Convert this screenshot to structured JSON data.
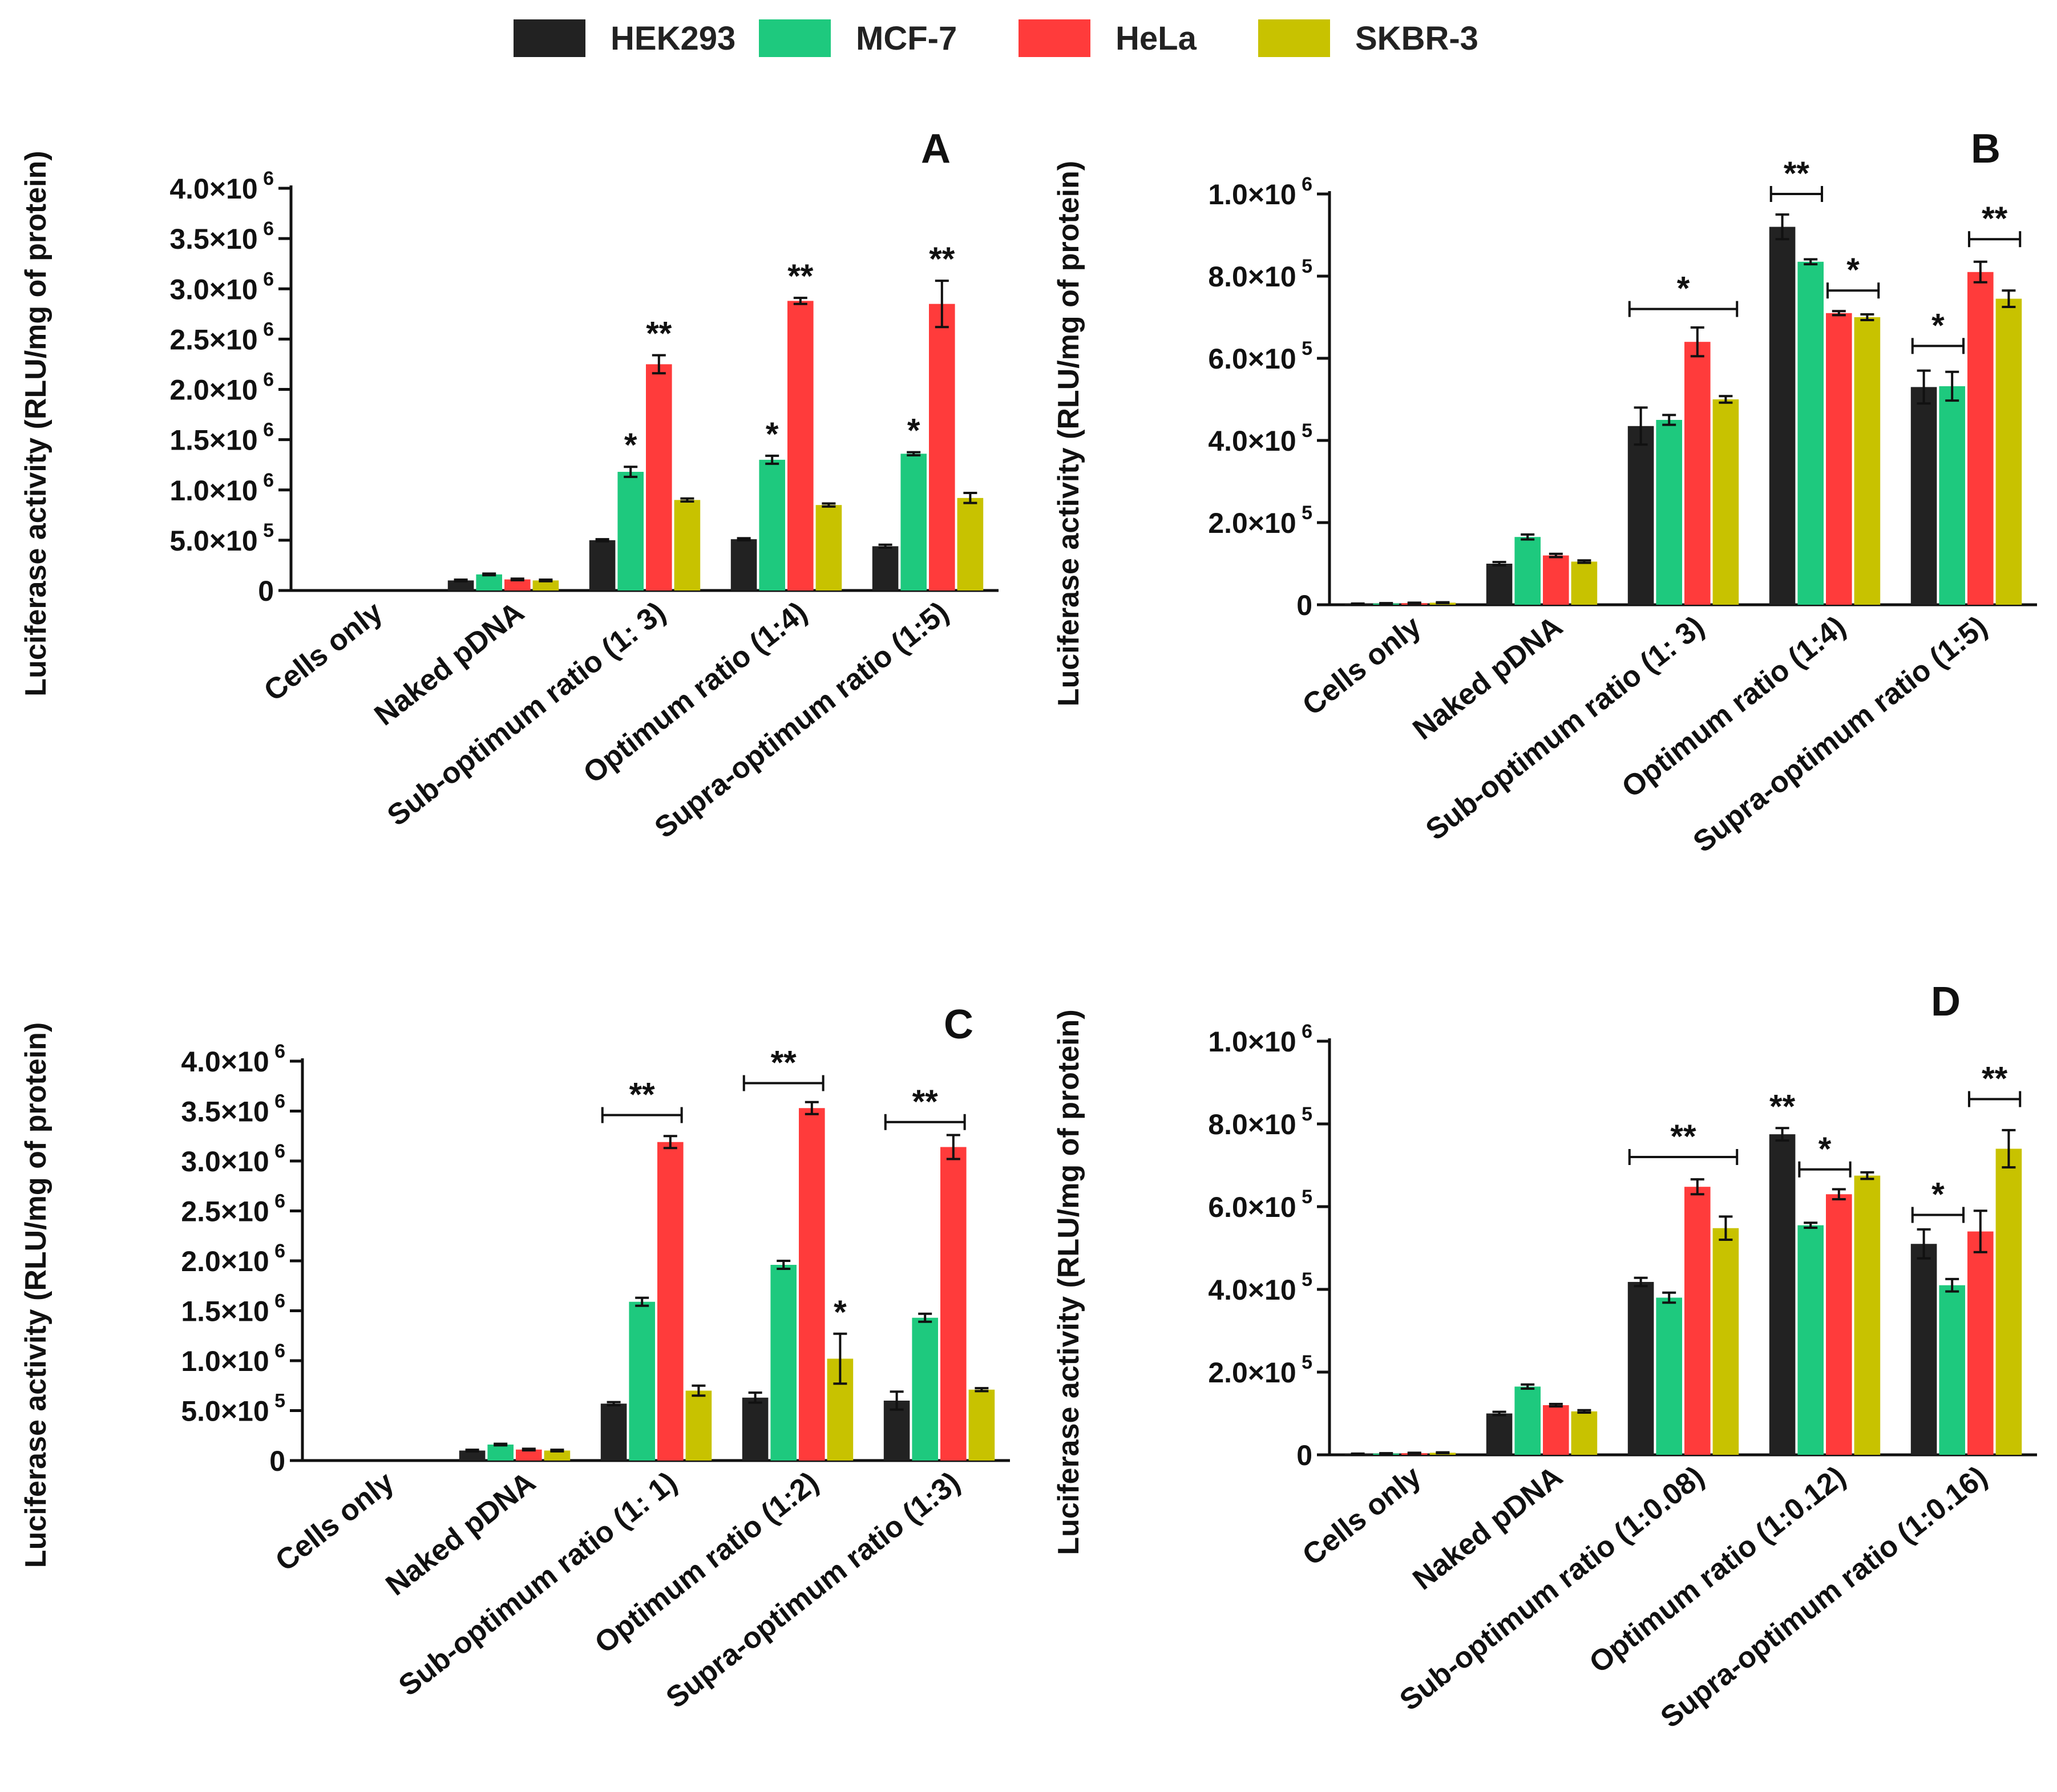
{
  "legend": [
    {
      "name": "HEK293",
      "color": "#222222"
    },
    {
      "name": "MCF-7",
      "color": "#1ec97e"
    },
    {
      "name": "HeLa",
      "color": "#ff3b3b"
    },
    {
      "name": "SKBR-3",
      "color": "#c8c200"
    }
  ],
  "chart_data": [
    {
      "type": "bar",
      "title": "A",
      "ylabel": "Luciferase activity (RLU/mg of protein)",
      "ylim": [
        0,
        4000000
      ],
      "yticks": [
        {
          "value": 0,
          "label": "0"
        },
        {
          "value": 500000,
          "label": "5.0×10^5"
        },
        {
          "value": 1000000,
          "label": "1.0×10^6"
        },
        {
          "value": 1500000,
          "label": "1.5×10^6"
        },
        {
          "value": 2000000,
          "label": "2.0×10^6"
        },
        {
          "value": 2500000,
          "label": "2.5×10^6"
        },
        {
          "value": 3000000,
          "label": "3.0×10^6"
        },
        {
          "value": 3500000,
          "label": "3.5×10^6"
        },
        {
          "value": 4000000,
          "label": "4.0×10^6"
        }
      ],
      "categories": [
        "Cells only",
        "Naked pDNA",
        "Sub-optimum ratio (1: 3)",
        "Optimum ratio (1:4)",
        "Supra-optimum ratio (1:5)"
      ],
      "series": [
        {
          "name": "HEK293",
          "values": [
            0,
            100000,
            500000,
            510000,
            440000
          ],
          "errors": [
            0,
            8000,
            10000,
            10000,
            15000
          ]
        },
        {
          "name": "MCF-7",
          "values": [
            0,
            160000,
            1180000,
            1300000,
            1360000
          ],
          "errors": [
            0,
            8000,
            50000,
            40000,
            15000
          ]
        },
        {
          "name": "HeLa",
          "values": [
            0,
            110000,
            2250000,
            2880000,
            2850000
          ],
          "errors": [
            0,
            8000,
            90000,
            30000,
            230000
          ]
        },
        {
          "name": "SKBR-3",
          "values": [
            0,
            100000,
            900000,
            850000,
            920000
          ],
          "errors": [
            0,
            8000,
            15000,
            15000,
            50000
          ]
        }
      ],
      "annotations": [
        {
          "text": "*",
          "category": 2,
          "series": 1
        },
        {
          "text": "**",
          "category": 2,
          "series": 2
        },
        {
          "text": "*",
          "category": 3,
          "series": 1
        },
        {
          "text": "**",
          "category": 3,
          "series": 2
        },
        {
          "text": "*",
          "category": 4,
          "series": 1
        },
        {
          "text": "**",
          "category": 4,
          "series": 2
        }
      ],
      "brackets": []
    },
    {
      "type": "bar",
      "title": "B",
      "ylabel": "Luciferase activity (RLU/mg of protein)",
      "ylim": [
        0,
        1000000
      ],
      "yticks": [
        {
          "value": 0,
          "label": "0"
        },
        {
          "value": 200000,
          "label": "2.0×10^5"
        },
        {
          "value": 400000,
          "label": "4.0×10^5"
        },
        {
          "value": 600000,
          "label": "6.0×10^5"
        },
        {
          "value": 800000,
          "label": "8.0×10^5"
        },
        {
          "value": 1000000,
          "label": "1.0×10^6"
        }
      ],
      "categories": [
        "Cells only",
        "Naked pDNA",
        "Sub-optimum ratio (1: 3)",
        "Optimum ratio (1:4)",
        "Supra-optimum ratio (1:5)"
      ],
      "series": [
        {
          "name": "HEK293",
          "values": [
            2000,
            100000,
            435000,
            920000,
            530000
          ],
          "errors": [
            1000,
            4000,
            45000,
            30000,
            40000
          ]
        },
        {
          "name": "MCF-7",
          "values": [
            3000,
            165000,
            450000,
            835000,
            532000
          ],
          "errors": [
            1000,
            6000,
            12000,
            6000,
            35000
          ]
        },
        {
          "name": "HeLa",
          "values": [
            4000,
            120000,
            640000,
            710000,
            810000
          ],
          "errors": [
            1000,
            4000,
            35000,
            5000,
            25000
          ]
        },
        {
          "name": "SKBR-3",
          "values": [
            5000,
            105000,
            500000,
            700000,
            745000
          ],
          "errors": [
            1000,
            3000,
            8000,
            7000,
            20000
          ]
        }
      ],
      "annotations": [],
      "brackets": [
        {
          "text": "*",
          "category": 2,
          "from": 0,
          "to": 3,
          "value": 720000
        },
        {
          "text": "**",
          "category": 3,
          "from": 0,
          "to": 1,
          "value": 1000000
        },
        {
          "text": "*",
          "category": 3,
          "from": 2,
          "to": 3,
          "value": 765000
        },
        {
          "text": "*",
          "category": 4,
          "from": 0,
          "to": 1,
          "value": 630000
        },
        {
          "text": "**",
          "category": 4,
          "from": 2,
          "to": 3,
          "value": 890000
        }
      ]
    },
    {
      "type": "bar",
      "title": "C",
      "ylabel": "Luciferase activity (RLU/mg of protein)",
      "ylim": [
        0,
        4000000
      ],
      "yticks": [
        {
          "value": 0,
          "label": "0"
        },
        {
          "value": 500000,
          "label": "5.0×10^5"
        },
        {
          "value": 1000000,
          "label": "1.0×10^6"
        },
        {
          "value": 1500000,
          "label": "1.5×10^6"
        },
        {
          "value": 2000000,
          "label": "2.0×10^6"
        },
        {
          "value": 2500000,
          "label": "2.5×10^6"
        },
        {
          "value": 3000000,
          "label": "3.0×10^6"
        },
        {
          "value": 3500000,
          "label": "3.5×10^6"
        },
        {
          "value": 4000000,
          "label": "4.0×10^6"
        }
      ],
      "categories": [
        "Cells only",
        "Naked pDNA",
        "Sub-optimum ratio (1: 1)",
        "Optimum ratio (1:2)",
        "Supra-optimum ratio (1:3)"
      ],
      "series": [
        {
          "name": "HEK293",
          "values": [
            0,
            100000,
            570000,
            630000,
            600000
          ],
          "errors": [
            0,
            8000,
            15000,
            50000,
            90000
          ]
        },
        {
          "name": "MCF-7",
          "values": [
            0,
            160000,
            1590000,
            1960000,
            1430000
          ],
          "errors": [
            0,
            8000,
            40000,
            40000,
            40000
          ]
        },
        {
          "name": "HeLa",
          "values": [
            0,
            110000,
            3190000,
            3530000,
            3140000
          ],
          "errors": [
            0,
            8000,
            60000,
            60000,
            120000
          ]
        },
        {
          "name": "SKBR-3",
          "values": [
            0,
            100000,
            700000,
            1020000,
            710000
          ],
          "errors": [
            0,
            8000,
            50000,
            250000,
            15000
          ]
        }
      ],
      "annotations": [
        {
          "text": "*",
          "category": 3,
          "series": 3
        }
      ],
      "brackets": [
        {
          "text": "**",
          "category": 2,
          "from": 0,
          "to": 2,
          "value": 3460000
        },
        {
          "text": "**",
          "category": 3,
          "from": 0,
          "to": 2,
          "value": 3780000
        },
        {
          "text": "**",
          "category": 4,
          "from": 0,
          "to": 2,
          "value": 3390000
        }
      ]
    },
    {
      "type": "bar",
      "title": "D",
      "ylabel": "Luciferase activity (RLU/mg of protein)",
      "ylim": [
        0,
        1000000
      ],
      "yticks": [
        {
          "value": 0,
          "label": "0"
        },
        {
          "value": 200000,
          "label": "2.0×10^5"
        },
        {
          "value": 400000,
          "label": "4.0×10^5"
        },
        {
          "value": 600000,
          "label": "6.0×10^5"
        },
        {
          "value": 800000,
          "label": "8.0×10^5"
        },
        {
          "value": 1000000,
          "label": "1.0×10^6"
        }
      ],
      "categories": [
        "Cells only",
        "Naked pDNA",
        "Sub-optimum ratio (1:0.08)",
        "Optimum ratio (1:0.12)",
        "Supra-optimum ratio (1:0.16)"
      ],
      "series": [
        {
          "name": "HEK293",
          "values": [
            2000,
            100000,
            418000,
            775000,
            510000
          ],
          "errors": [
            1000,
            4000,
            10000,
            15000,
            35000
          ]
        },
        {
          "name": "MCF-7",
          "values": [
            3000,
            165000,
            380000,
            555000,
            410000
          ],
          "errors": [
            1000,
            5000,
            12000,
            6000,
            15000
          ]
        },
        {
          "name": "HeLa",
          "values": [
            4000,
            120000,
            648000,
            630000,
            540000
          ],
          "errors": [
            1000,
            3000,
            18000,
            12000,
            50000
          ]
        },
        {
          "name": "SKBR-3",
          "values": [
            5000,
            105000,
            548000,
            675000,
            740000
          ],
          "errors": [
            1000,
            3000,
            28000,
            8000,
            45000
          ]
        }
      ],
      "annotations": [
        {
          "text": "**",
          "category": 3,
          "series": 0
        }
      ],
      "brackets": [
        {
          "text": "**",
          "category": 2,
          "from": 0,
          "to": 3,
          "value": 720000
        },
        {
          "text": "*",
          "category": 3,
          "from": 1,
          "to": 2,
          "value": 690000
        },
        {
          "text": "*",
          "category": 4,
          "from": 0,
          "to": 1,
          "value": 580000
        },
        {
          "text": "**",
          "category": 4,
          "from": 2,
          "to": 3,
          "value": 860000
        }
      ]
    }
  ]
}
